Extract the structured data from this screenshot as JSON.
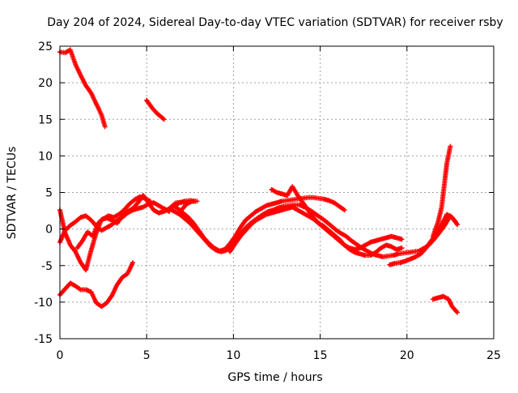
{
  "chart_data": {
    "type": "scatter",
    "title": "Day 204 of 2024, Sidereal Day-to-day VTEC variation (SDTVAR) for receiver rsby",
    "xlabel": "GPS time / hours",
    "ylabel": "SDTVAR / TECUs",
    "xlim": [
      0,
      25
    ],
    "ylim": [
      -15,
      25
    ],
    "xticks": [
      0,
      5,
      10,
      15,
      20,
      25
    ],
    "yticks": [
      -15,
      -10,
      -5,
      0,
      5,
      10,
      15,
      20,
      25
    ],
    "grid": true,
    "marker": "plus",
    "color": "#ff0000",
    "series": [
      {
        "name": "trace-top-left",
        "points": [
          [
            0.0,
            24.2
          ],
          [
            0.3,
            24.1
          ],
          [
            0.6,
            24.5
          ],
          [
            0.9,
            22.5
          ],
          [
            1.2,
            21.0
          ],
          [
            1.5,
            19.6
          ],
          [
            1.8,
            18.6
          ],
          [
            2.1,
            17.1
          ],
          [
            2.4,
            15.6
          ],
          [
            2.6,
            14.0
          ]
        ]
      },
      {
        "name": "trace-top-mid",
        "points": [
          [
            5.0,
            17.6
          ],
          [
            5.3,
            16.6
          ],
          [
            5.6,
            15.8
          ],
          [
            5.8,
            15.4
          ],
          [
            6.0,
            15.0
          ]
        ]
      },
      {
        "name": "trace-bottom-left",
        "points": [
          [
            0.0,
            -9.0
          ],
          [
            0.3,
            -8.2
          ],
          [
            0.6,
            -7.4
          ],
          [
            0.9,
            -7.8
          ],
          [
            1.2,
            -8.3
          ],
          [
            1.5,
            -8.3
          ],
          [
            1.8,
            -8.6
          ],
          [
            2.1,
            -10.1
          ],
          [
            2.4,
            -10.6
          ],
          [
            2.7,
            -10.1
          ],
          [
            3.0,
            -9.1
          ],
          [
            3.3,
            -7.6
          ],
          [
            3.6,
            -6.6
          ],
          [
            3.9,
            -6.1
          ],
          [
            4.2,
            -4.6
          ]
        ]
      },
      {
        "name": "trace-bottom-right",
        "points": [
          [
            21.5,
            -9.6
          ],
          [
            21.8,
            -9.4
          ],
          [
            22.1,
            -9.2
          ],
          [
            22.4,
            -9.6
          ],
          [
            22.6,
            -10.6
          ],
          [
            22.9,
            -11.4
          ]
        ]
      },
      {
        "name": "trace-spike-right",
        "points": [
          [
            21.5,
            -1.0
          ],
          [
            21.8,
            1.0
          ],
          [
            22.0,
            3.0
          ],
          [
            22.1,
            5.0
          ],
          [
            22.2,
            7.0
          ],
          [
            22.3,
            9.0
          ],
          [
            22.5,
            11.3
          ]
        ]
      },
      {
        "name": "trace-main-1",
        "points": [
          [
            0.0,
            2.6
          ],
          [
            0.3,
            -0.5
          ],
          [
            0.6,
            -2.2
          ],
          [
            0.9,
            -3.1
          ],
          [
            1.2,
            -4.6
          ],
          [
            1.5,
            -5.6
          ],
          [
            1.8,
            -2.9
          ],
          [
            2.1,
            -0.5
          ],
          [
            2.4,
            1.3
          ],
          [
            2.7,
            1.5
          ],
          [
            3.0,
            1.2
          ],
          [
            3.3,
            0.8
          ],
          [
            3.6,
            1.8
          ],
          [
            3.9,
            2.4
          ],
          [
            4.2,
            2.8
          ],
          [
            4.5,
            3.6
          ],
          [
            4.8,
            4.6
          ],
          [
            5.1,
            3.6
          ],
          [
            5.4,
            2.6
          ],
          [
            5.7,
            2.2
          ],
          [
            6.0,
            2.4
          ],
          [
            6.3,
            2.8
          ],
          [
            6.6,
            3.2
          ],
          [
            6.9,
            3.6
          ],
          [
            7.2,
            3.8
          ],
          [
            7.5,
            3.9
          ],
          [
            7.8,
            3.8
          ]
        ]
      },
      {
        "name": "trace-main-2",
        "points": [
          [
            0.0,
            -1.8
          ],
          [
            0.3,
            -0.2
          ],
          [
            0.6,
            0.5
          ],
          [
            0.9,
            1.0
          ],
          [
            1.2,
            1.6
          ],
          [
            1.5,
            1.8
          ],
          [
            1.8,
            1.2
          ],
          [
            2.1,
            0.4
          ],
          [
            2.4,
            -0.2
          ],
          [
            2.7,
            0.2
          ],
          [
            3.0,
            0.6
          ],
          [
            3.3,
            1.2
          ],
          [
            3.6,
            1.6
          ],
          [
            3.9,
            2.2
          ],
          [
            4.2,
            2.6
          ],
          [
            4.5,
            2.8
          ],
          [
            4.8,
            3.0
          ],
          [
            5.1,
            3.4
          ],
          [
            5.4,
            3.6
          ],
          [
            5.7,
            3.2
          ],
          [
            6.0,
            2.8
          ],
          [
            6.3,
            2.4
          ]
        ]
      },
      {
        "name": "trace-main-3",
        "points": [
          [
            1.0,
            -2.6
          ],
          [
            1.3,
            -1.6
          ],
          [
            1.6,
            -0.4
          ],
          [
            1.9,
            -1.0
          ],
          [
            2.2,
            0.8
          ],
          [
            2.5,
            1.4
          ],
          [
            2.8,
            1.8
          ],
          [
            3.1,
            1.6
          ],
          [
            3.4,
            2.0
          ],
          [
            3.7,
            2.6
          ],
          [
            4.0,
            3.4
          ],
          [
            4.3,
            4.0
          ],
          [
            4.6,
            4.4
          ],
          [
            4.9,
            4.2
          ],
          [
            5.2,
            3.8
          ]
        ]
      },
      {
        "name": "trace-wave-1",
        "points": [
          [
            6.3,
            2.8
          ],
          [
            6.6,
            2.4
          ],
          [
            6.9,
            2.0
          ],
          [
            7.2,
            1.4
          ],
          [
            7.5,
            0.8
          ],
          [
            7.8,
            0.0
          ],
          [
            8.1,
            -0.8
          ],
          [
            8.4,
            -1.6
          ],
          [
            8.7,
            -2.4
          ],
          [
            9.0,
            -2.9
          ],
          [
            9.3,
            -3.1
          ],
          [
            9.6,
            -2.9
          ],
          [
            9.9,
            -2.3
          ],
          [
            10.2,
            -1.3
          ],
          [
            10.5,
            -0.4
          ],
          [
            10.8,
            0.4
          ],
          [
            11.1,
            1.0
          ],
          [
            11.4,
            1.5
          ],
          [
            11.7,
            2.0
          ],
          [
            12.0,
            2.4
          ],
          [
            12.3,
            2.6
          ],
          [
            12.6,
            2.9
          ],
          [
            12.9,
            3.1
          ],
          [
            13.2,
            3.2
          ],
          [
            13.5,
            3.3
          ],
          [
            13.8,
            3.3
          ],
          [
            14.1,
            3.0
          ],
          [
            14.4,
            2.6
          ],
          [
            14.7,
            2.1
          ],
          [
            15.0,
            1.6
          ],
          [
            15.3,
            1.1
          ],
          [
            15.6,
            0.5
          ],
          [
            15.9,
            -0.1
          ],
          [
            16.2,
            -0.6
          ],
          [
            16.5,
            -1.0
          ],
          [
            16.8,
            -1.6
          ],
          [
            17.1,
            -2.1
          ],
          [
            17.4,
            -2.6
          ],
          [
            17.7,
            -3.0
          ],
          [
            18.0,
            -3.4
          ],
          [
            18.3,
            -3.6
          ],
          [
            18.6,
            -3.8
          ],
          [
            18.9,
            -3.7
          ],
          [
            19.2,
            -3.6
          ],
          [
            19.5,
            -3.4
          ],
          [
            19.8,
            -3.3
          ],
          [
            20.1,
            -3.2
          ],
          [
            20.4,
            -3.1
          ],
          [
            20.7,
            -3.0
          ],
          [
            21.0,
            -2.6
          ],
          [
            21.3,
            -2.1
          ],
          [
            21.6,
            -1.3
          ],
          [
            21.9,
            -0.4
          ],
          [
            22.2,
            0.6
          ],
          [
            22.5,
            1.8
          ],
          [
            22.8,
            1.0
          ]
        ]
      },
      {
        "name": "trace-wave-2",
        "points": [
          [
            6.5,
            3.2
          ],
          [
            6.8,
            2.8
          ],
          [
            7.1,
            2.2
          ],
          [
            7.4,
            1.6
          ],
          [
            7.7,
            0.8
          ],
          [
            8.0,
            -0.2
          ],
          [
            8.3,
            -1.2
          ],
          [
            8.6,
            -2.0
          ],
          [
            8.9,
            -2.6
          ],
          [
            9.2,
            -3.0
          ],
          [
            9.5,
            -2.8
          ],
          [
            9.8,
            -2.0
          ],
          [
            10.1,
            -1.0
          ],
          [
            10.4,
            0.2
          ],
          [
            10.7,
            1.2
          ],
          [
            11.0,
            1.8
          ],
          [
            11.3,
            2.4
          ],
          [
            11.6,
            2.8
          ],
          [
            11.9,
            3.2
          ],
          [
            12.2,
            3.4
          ],
          [
            12.5,
            3.6
          ],
          [
            12.8,
            3.8
          ],
          [
            13.1,
            3.9
          ],
          [
            13.4,
            4.0
          ],
          [
            13.7,
            4.1
          ],
          [
            14.0,
            4.2
          ],
          [
            14.3,
            4.3
          ],
          [
            14.6,
            4.3
          ],
          [
            14.9,
            4.2
          ],
          [
            15.2,
            4.1
          ],
          [
            15.5,
            3.9
          ],
          [
            15.8,
            3.6
          ],
          [
            16.1,
            3.1
          ],
          [
            16.4,
            2.6
          ]
        ]
      },
      {
        "name": "trace-wave-3",
        "points": [
          [
            9.8,
            -3.1
          ],
          [
            10.1,
            -2.0
          ],
          [
            10.4,
            -1.0
          ],
          [
            10.7,
            -0.2
          ],
          [
            11.0,
            0.6
          ],
          [
            11.3,
            1.2
          ],
          [
            11.6,
            1.6
          ],
          [
            11.9,
            2.0
          ],
          [
            12.2,
            2.2
          ],
          [
            12.5,
            2.4
          ],
          [
            12.8,
            2.6
          ],
          [
            13.1,
            2.8
          ],
          [
            13.4,
            3.0
          ],
          [
            13.7,
            2.6
          ],
          [
            14.0,
            2.2
          ],
          [
            14.3,
            1.8
          ],
          [
            14.6,
            1.4
          ],
          [
            14.9,
            0.8
          ],
          [
            15.2,
            0.2
          ],
          [
            15.5,
            -0.4
          ],
          [
            15.8,
            -1.0
          ],
          [
            16.1,
            -1.6
          ],
          [
            16.4,
            -2.2
          ],
          [
            16.7,
            -2.6
          ],
          [
            17.0,
            -2.8
          ],
          [
            17.3,
            -2.6
          ],
          [
            17.6,
            -2.2
          ],
          [
            17.9,
            -1.8
          ],
          [
            18.2,
            -1.6
          ],
          [
            18.5,
            -1.4
          ],
          [
            18.8,
            -1.2
          ],
          [
            19.1,
            -1.0
          ],
          [
            19.4,
            -1.2
          ],
          [
            19.7,
            -1.4
          ]
        ]
      },
      {
        "name": "trace-wave-4",
        "points": [
          [
            12.2,
            5.4
          ],
          [
            12.5,
            5.0
          ],
          [
            12.8,
            4.8
          ],
          [
            13.1,
            4.6
          ],
          [
            13.4,
            5.8
          ],
          [
            13.7,
            4.6
          ],
          [
            14.0,
            3.6
          ],
          [
            14.3,
            2.6
          ],
          [
            14.6,
            1.6
          ],
          [
            14.9,
            0.8
          ],
          [
            15.2,
            0.4
          ],
          [
            15.5,
            -0.2
          ],
          [
            15.8,
            -0.8
          ],
          [
            16.1,
            -1.4
          ],
          [
            16.4,
            -2.2
          ],
          [
            16.7,
            -2.8
          ],
          [
            17.0,
            -3.2
          ],
          [
            17.3,
            -3.4
          ],
          [
            17.6,
            -3.6
          ],
          [
            17.9,
            -3.6
          ],
          [
            18.2,
            -3.2
          ],
          [
            18.5,
            -2.6
          ],
          [
            18.8,
            -2.2
          ],
          [
            19.1,
            -2.4
          ],
          [
            19.4,
            -2.8
          ],
          [
            19.7,
            -2.6
          ]
        ]
      },
      {
        "name": "trace-wave-5",
        "points": [
          [
            19.0,
            -4.9
          ],
          [
            19.3,
            -4.7
          ],
          [
            19.6,
            -4.6
          ],
          [
            19.9,
            -4.4
          ],
          [
            20.2,
            -4.1
          ],
          [
            20.5,
            -3.8
          ],
          [
            20.8,
            -3.4
          ],
          [
            21.1,
            -2.6
          ],
          [
            21.4,
            -1.6
          ],
          [
            21.7,
            -0.6
          ],
          [
            22.0,
            0.6
          ],
          [
            22.3,
            2.0
          ],
          [
            22.6,
            1.6
          ],
          [
            22.9,
            0.6
          ]
        ]
      },
      {
        "name": "trace-left-cluster",
        "points": [
          [
            7.0,
            2.6
          ],
          [
            7.3,
            3.4
          ],
          [
            7.6,
            3.8
          ],
          [
            7.9,
            3.8
          ],
          [
            6.7,
            3.6
          ],
          [
            6.4,
            3.0
          ]
        ]
      }
    ]
  }
}
